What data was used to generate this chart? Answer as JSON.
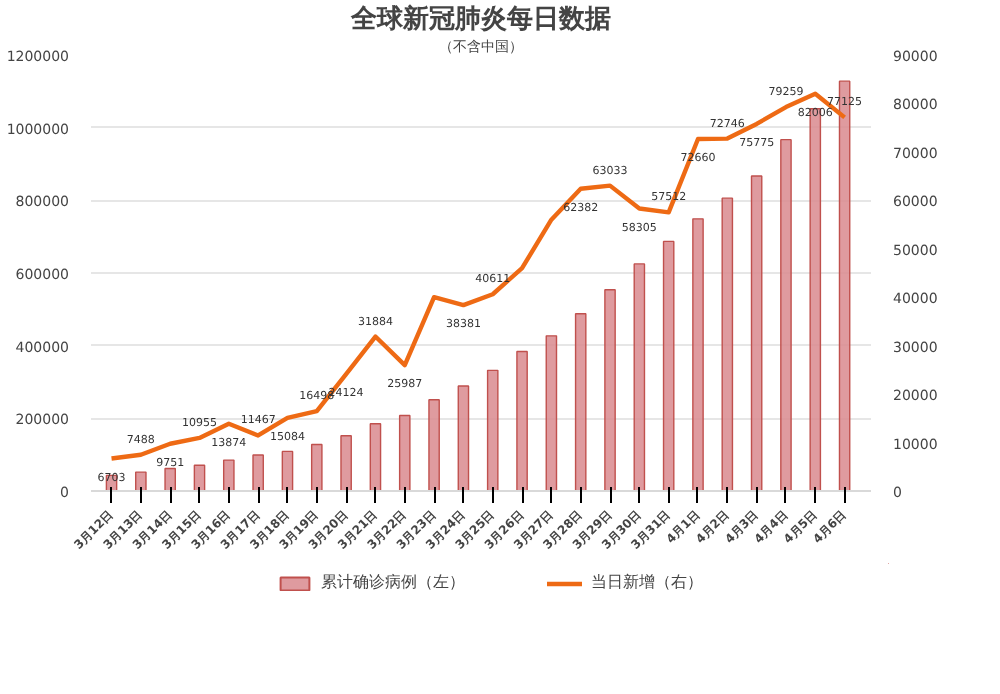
{
  "chart_data": {
    "type": "bar",
    "title": "全球新冠肺炎每日数据",
    "subtitle": "（不含中国）",
    "categories": [
      "3月12日",
      "3月13日",
      "3月14日",
      "3月15日",
      "3月16日",
      "3月17日",
      "3月18日",
      "3月19日",
      "3月20日",
      "3月21日",
      "3月22日",
      "3月23日",
      "3月24日",
      "3月25日",
      "3月26日",
      "3月27日",
      "3月28日",
      "3月29日",
      "3月30日",
      "3月31日",
      "4月1日",
      "4月2日",
      "4月3日",
      "4月4日",
      "4月5日",
      "4月6日"
    ],
    "series": [
      {
        "name": "累计确诊病例（左）",
        "color": "#d98a8e",
        "values": [
          43000,
          52000,
          62000,
          71000,
          85000,
          99000,
          109000,
          128000,
          152000,
          185000,
          208000,
          251000,
          289000,
          332000,
          384000,
          427000,
          488000,
          554000,
          625000,
          687000,
          749000,
          806000,
          867000,
          967000,
          1052000,
          1128000
        ]
      },
      {
        "name": "当日新增（右）",
        "type": "line",
        "axis": "y2",
        "color": "#ee6a14",
        "values": [
          6703,
          7488,
          9751,
          10955,
          13874,
          11467,
          15084,
          16498,
          24124,
          31884,
          25987,
          40000,
          38381,
          40611,
          46000,
          56000,
          62382,
          63033,
          58305,
          57512,
          72660,
          72746,
          75775,
          79259,
          82006,
          77125
        ],
        "value_labels": [
          "6703",
          "7488",
          "9751",
          "10955",
          "13874",
          "11467",
          "15084",
          "16498",
          "24124",
          "31884",
          "25987",
          null,
          "38381",
          "40611",
          null,
          null,
          "62382",
          "63033",
          "58305",
          "57512",
          "72660",
          "72746",
          "75775",
          "79259",
          "82006",
          "77125"
        ]
      }
    ],
    "ylim": [
      0,
      1200000
    ],
    "yticks": [
      0,
      200000,
      400000,
      600000,
      800000,
      1000000,
      1200000
    ],
    "y2lim": [
      0,
      90000
    ],
    "y2ticks": [
      0,
      10000,
      20000,
      30000,
      40000,
      50000,
      60000,
      70000,
      80000,
      90000
    ],
    "grid": "y",
    "legend": "bottom",
    "marker": "none",
    "line_style": "solid"
  }
}
